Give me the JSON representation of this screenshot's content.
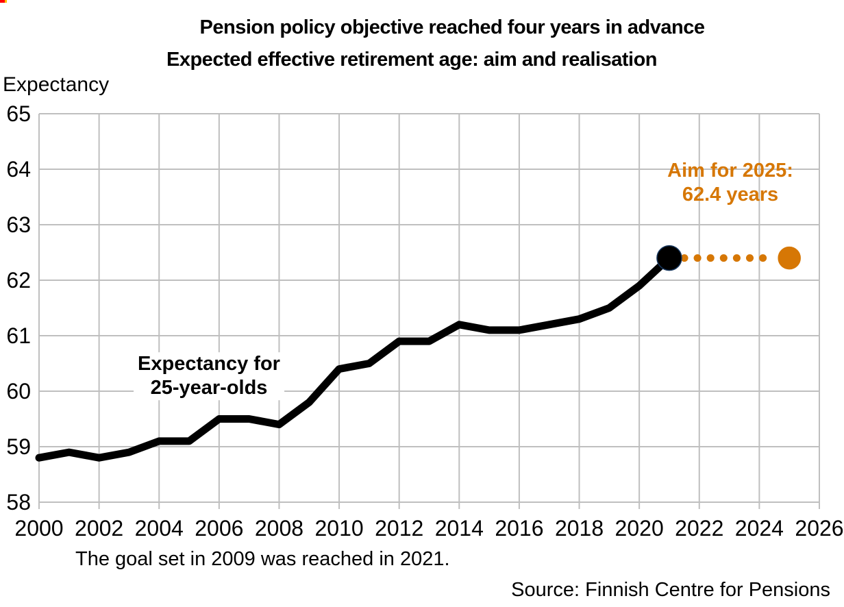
{
  "header": {
    "title": "Pension policy objective reached four years in advance",
    "subtitle": "Expected effective retirement age: aim and realisation"
  },
  "captions": {
    "note": "The goal set in 2009 was reached in 2021.",
    "source": "Source: Finnish Centre for Pensions"
  },
  "colors": {
    "accent_orange": "#D67705",
    "line_black": "#000000",
    "grid_gray": "#BFBFBF",
    "realised_marker_outline": "#17375E",
    "corner_artifact_red": "#FF0000",
    "corner_artifact_yellow": "#FFC000"
  },
  "chart_data": {
    "type": "line",
    "title": "Pension policy objective reached four years in advance",
    "subtitle": "Expected effective retirement age: aim and realisation",
    "y_axis_title": "Expectancy",
    "xlabel": "",
    "ylabel": "Expectancy",
    "xlim": [
      2000,
      2026
    ],
    "ylim": [
      58,
      65
    ],
    "x_ticks": [
      2000,
      2002,
      2004,
      2006,
      2008,
      2010,
      2012,
      2014,
      2016,
      2018,
      2020,
      2022,
      2024,
      2026
    ],
    "y_ticks": [
      65,
      64,
      63,
      62,
      61,
      60,
      59,
      58
    ],
    "grid": true,
    "legend_position": "none",
    "series": [
      {
        "name": "Expectancy for 25-year-olds",
        "style": "solid",
        "color": "#000000",
        "x": [
          2000,
          2001,
          2002,
          2003,
          2004,
          2005,
          2006,
          2007,
          2008,
          2009,
          2010,
          2011,
          2012,
          2013,
          2014,
          2015,
          2016,
          2017,
          2018,
          2019,
          2020,
          2021
        ],
        "values": [
          58.8,
          58.9,
          58.8,
          58.9,
          59.1,
          59.1,
          59.5,
          59.5,
          59.4,
          59.8,
          60.4,
          60.5,
          60.9,
          60.9,
          61.2,
          61.1,
          61.1,
          61.2,
          61.3,
          61.5,
          61.9,
          62.4
        ]
      },
      {
        "name": "Aim for 2025",
        "style": "dotted",
        "color": "#D67705",
        "x": [
          2021,
          2025
        ],
        "values": [
          62.4,
          62.4
        ]
      }
    ],
    "markers": [
      {
        "x": 2021,
        "y": 62.4,
        "fill": "#000000",
        "outline": "#17375E",
        "radius": 18
      },
      {
        "x": 2025,
        "y": 62.4,
        "fill": "#D67705",
        "outline": "#D67705",
        "radius": 16
      }
    ],
    "annotations": {
      "series_label": {
        "lines": [
          "Expectancy for",
          "25-year-olds"
        ]
      },
      "aim_label": {
        "lines": [
          "Aim for 2025:",
          "62.4 years"
        ]
      }
    }
  }
}
